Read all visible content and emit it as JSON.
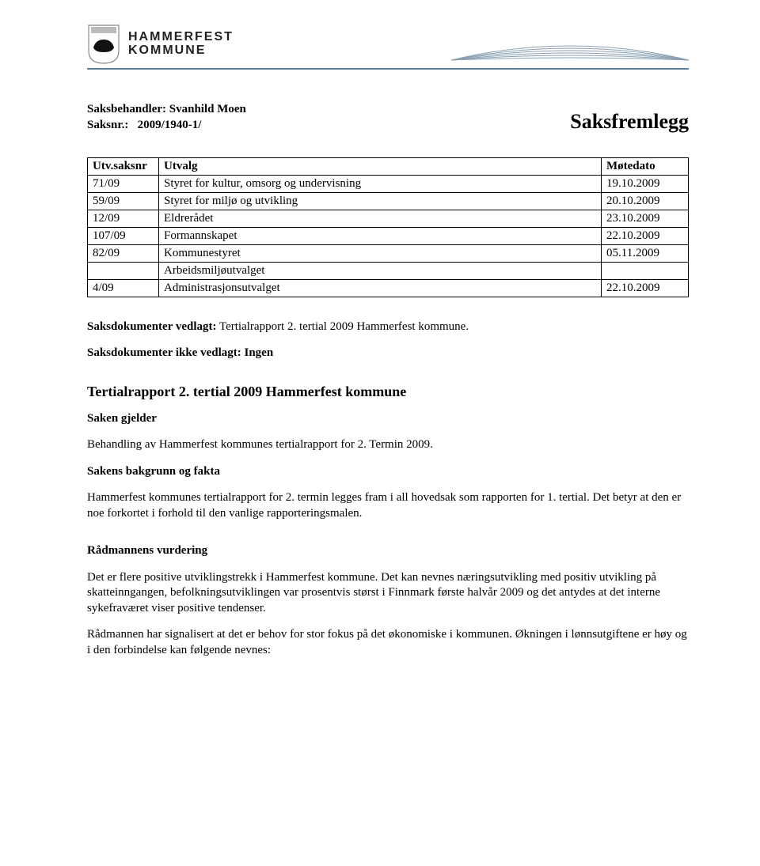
{
  "header": {
    "org_line1": "HAMMERFEST",
    "org_line2": "KOMMUNE",
    "border_color": "#5a7a99",
    "shield_bg": "#fdfdfd",
    "shield_stroke": "#888",
    "bear_color": "#111"
  },
  "meta": {
    "saksbehandler_label": "Saksbehandler:",
    "saksbehandler_value": "Svanhild Moen",
    "saksnr_label": "Saksnr.:",
    "saksnr_value": "2009/1940-1/"
  },
  "doc_title": "Saksfremlegg",
  "table": {
    "headers": {
      "nr": "Utv.saksnr",
      "utvalg": "Utvalg",
      "dato": "Møtedato"
    },
    "rows": [
      {
        "nr": "71/09",
        "utvalg": "Styret for kultur, omsorg og undervisning",
        "dato": "19.10.2009"
      },
      {
        "nr": "59/09",
        "utvalg": "Styret for miljø og utvikling",
        "dato": "20.10.2009"
      },
      {
        "nr": "12/09",
        "utvalg": "Eldrerådet",
        "dato": "23.10.2009"
      },
      {
        "nr": "107/09",
        "utvalg": "Formannskapet",
        "dato": "22.10.2009"
      },
      {
        "nr": "82/09",
        "utvalg": "Kommunestyret",
        "dato": "05.11.2009"
      },
      {
        "nr": "",
        "utvalg": "Arbeidsmiljøutvalget",
        "dato": ""
      },
      {
        "nr": "4/09",
        "utvalg": "Administrasjonsutvalget",
        "dato": "22.10.2009"
      }
    ]
  },
  "body": {
    "vedlagt_label": "Saksdokumenter vedlagt:",
    "vedlagt_text": "Tertialrapport 2. tertial 2009 Hammerfest kommune.",
    "ikke_vedlagt": "Saksdokumenter ikke vedlagt: Ingen",
    "tertial_title": "Tertialrapport 2. tertial 2009 Hammerfest kommune",
    "saken_gjelder_h": "Saken gjelder",
    "saken_gjelder_p": "Behandling av Hammerfest kommunes tertialrapport for 2. Termin 2009.",
    "bakgrunn_h": "Sakens bakgrunn og fakta",
    "bakgrunn_p": "Hammerfest kommunes tertialrapport for 2. termin legges fram i all hovedsak som rapporten for 1. tertial. Det betyr at den er noe forkortet i forhold til den vanlige rapporteringsmalen.",
    "vurdering_h": "Rådmannens vurdering",
    "vurdering_p1": "Det er flere positive utviklingstrekk i Hammerfest kommune. Det kan nevnes næringsutvikling med positiv utvikling på skatteinngangen, befolkningsutviklingen var prosentvis størst i Finnmark første halvår 2009 og det antydes at det interne sykefraværet viser positive tendenser.",
    "vurdering_p2": "Rådmannen har signalisert at det er behov for stor fokus på det økonomiske i kommunen. Økningen i lønnsutgiftene er høy og i den forbindelse kan følgende nevnes:"
  }
}
